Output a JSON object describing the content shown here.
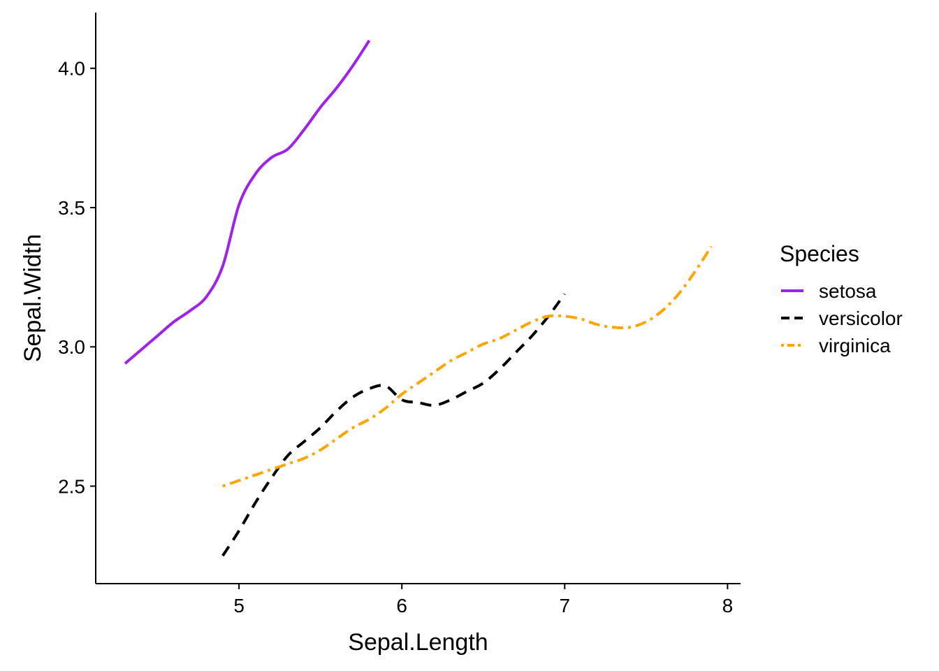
{
  "chart_data": {
    "type": "line",
    "title": "",
    "xlabel": "Sepal.Length",
    "ylabel": "Sepal.Width",
    "xlim": [
      4.12,
      8.08
    ],
    "ylim": [
      2.15,
      4.2
    ],
    "x_ticks": [
      5,
      6,
      7,
      8
    ],
    "x_tick_labels": [
      "5",
      "6",
      "7",
      "8"
    ],
    "y_ticks": [
      2.5,
      3.0,
      3.5,
      4.0
    ],
    "y_tick_labels": [
      "2.5",
      "3.0",
      "3.5",
      "4.0"
    ],
    "grid": false,
    "legend": {
      "title": "Species",
      "placement": "right"
    },
    "series": [
      {
        "name": "setosa",
        "color": "#A020F0",
        "dash": "solid",
        "points": [
          [
            4.3,
            2.94
          ],
          [
            4.4,
            2.99
          ],
          [
            4.5,
            3.04
          ],
          [
            4.6,
            3.09
          ],
          [
            4.7,
            3.13
          ],
          [
            4.8,
            3.18
          ],
          [
            4.9,
            3.29
          ],
          [
            5.0,
            3.51
          ],
          [
            5.1,
            3.62
          ],
          [
            5.2,
            3.68
          ],
          [
            5.3,
            3.71
          ],
          [
            5.4,
            3.78
          ],
          [
            5.5,
            3.86
          ],
          [
            5.6,
            3.93
          ],
          [
            5.7,
            4.01
          ],
          [
            5.8,
            4.1
          ]
        ]
      },
      {
        "name": "versicolor",
        "color": "#000000",
        "dash": "dashed",
        "points": [
          [
            4.9,
            2.25
          ],
          [
            5.0,
            2.34
          ],
          [
            5.1,
            2.44
          ],
          [
            5.2,
            2.53
          ],
          [
            5.3,
            2.61
          ],
          [
            5.4,
            2.66
          ],
          [
            5.5,
            2.71
          ],
          [
            5.6,
            2.77
          ],
          [
            5.7,
            2.82
          ],
          [
            5.8,
            2.85
          ],
          [
            5.9,
            2.86
          ],
          [
            6.0,
            2.81
          ],
          [
            6.1,
            2.8
          ],
          [
            6.2,
            2.79
          ],
          [
            6.3,
            2.81
          ],
          [
            6.4,
            2.84
          ],
          [
            6.5,
            2.87
          ],
          [
            6.6,
            2.92
          ],
          [
            6.7,
            2.98
          ],
          [
            6.8,
            3.04
          ],
          [
            6.9,
            3.11
          ],
          [
            7.0,
            3.19
          ]
        ]
      },
      {
        "name": "virginica",
        "color": "#FFA500",
        "dash": "dotdash",
        "points": [
          [
            4.9,
            2.5
          ],
          [
            5.0,
            2.52
          ],
          [
            5.1,
            2.54
          ],
          [
            5.2,
            2.56
          ],
          [
            5.3,
            2.58
          ],
          [
            5.4,
            2.6
          ],
          [
            5.5,
            2.63
          ],
          [
            5.6,
            2.67
          ],
          [
            5.7,
            2.71
          ],
          [
            5.8,
            2.74
          ],
          [
            5.9,
            2.78
          ],
          [
            6.0,
            2.83
          ],
          [
            6.1,
            2.87
          ],
          [
            6.2,
            2.91
          ],
          [
            6.3,
            2.95
          ],
          [
            6.4,
            2.98
          ],
          [
            6.5,
            3.01
          ],
          [
            6.6,
            3.03
          ],
          [
            6.7,
            3.06
          ],
          [
            6.8,
            3.09
          ],
          [
            6.9,
            3.11
          ],
          [
            7.0,
            3.11
          ],
          [
            7.1,
            3.1
          ],
          [
            7.2,
            3.08
          ],
          [
            7.3,
            3.07
          ],
          [
            7.4,
            3.07
          ],
          [
            7.5,
            3.09
          ],
          [
            7.6,
            3.13
          ],
          [
            7.7,
            3.19
          ],
          [
            7.8,
            3.27
          ],
          [
            7.9,
            3.36
          ]
        ]
      }
    ]
  }
}
